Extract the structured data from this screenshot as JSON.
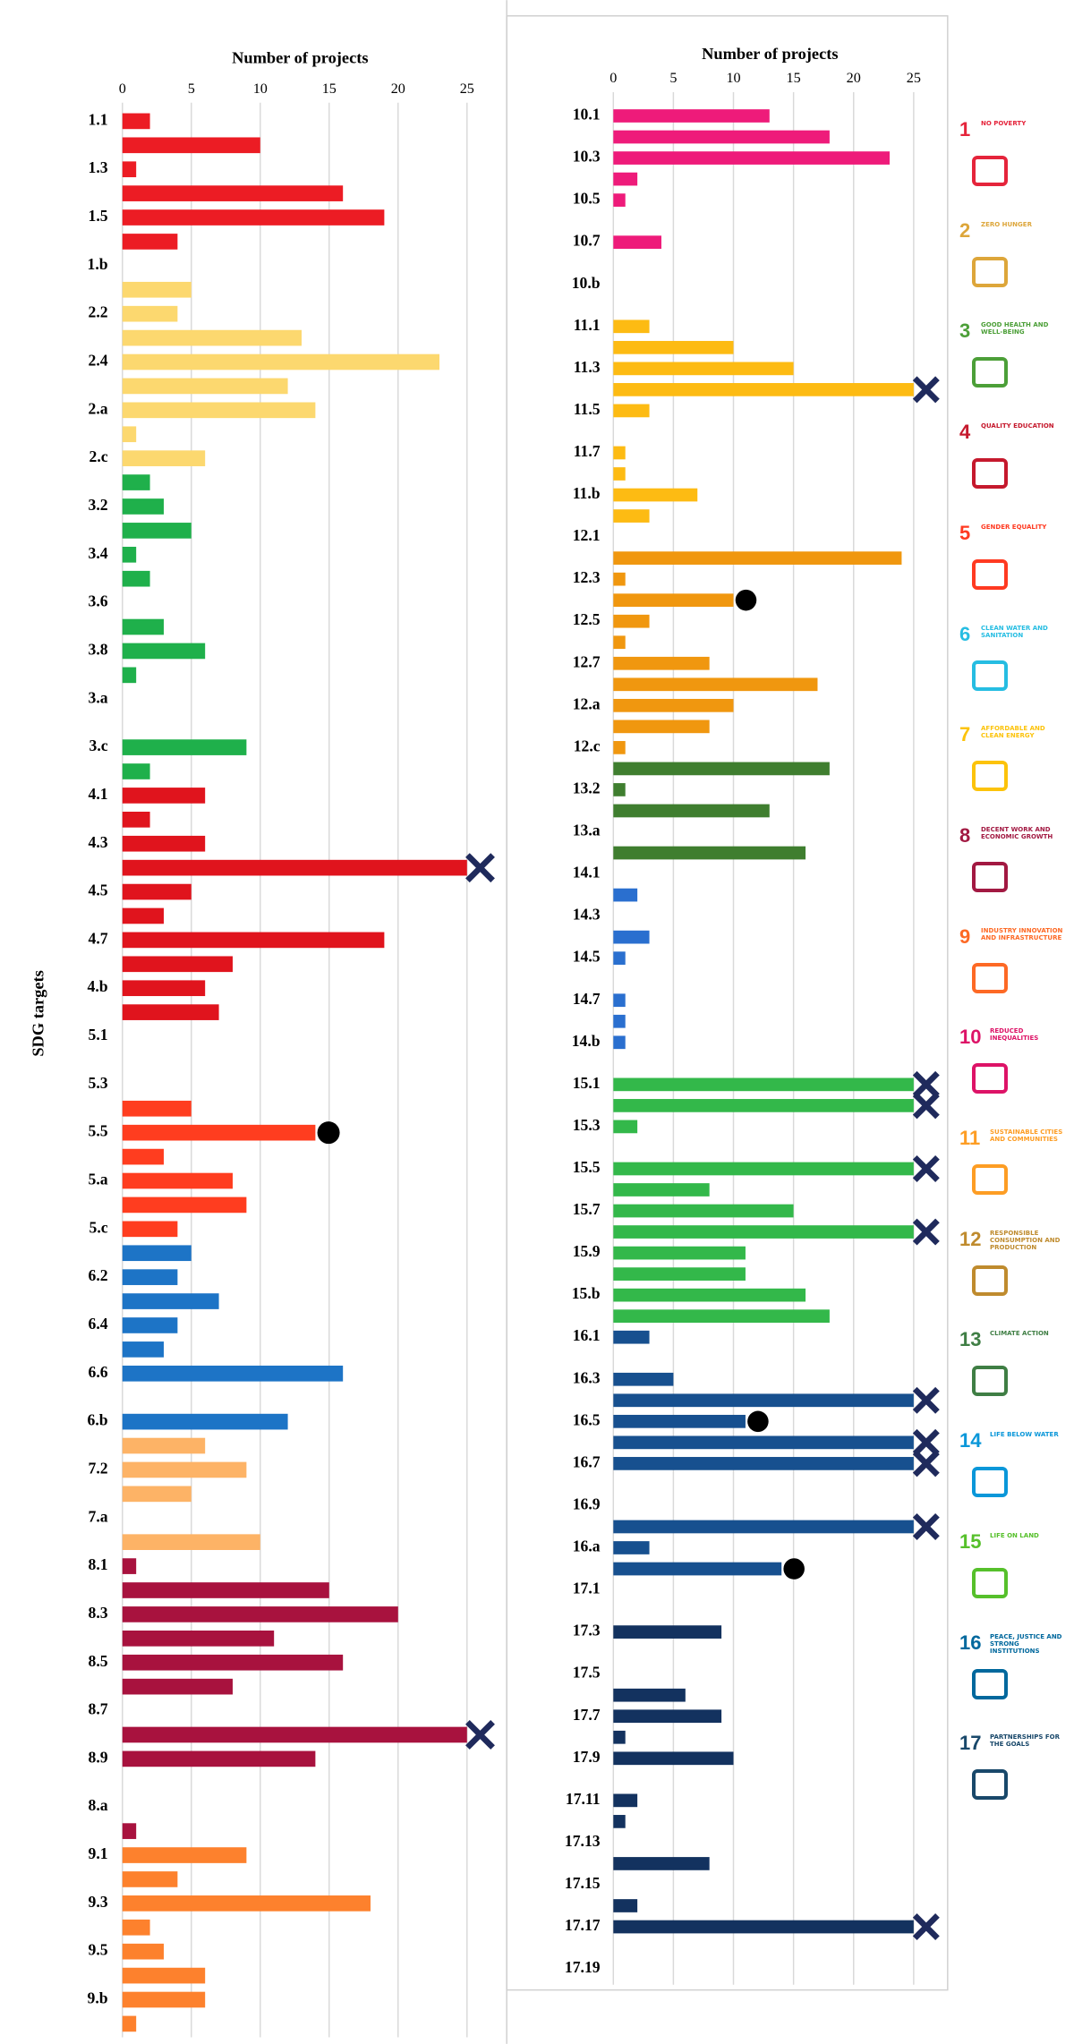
{
  "chart_data": [
    {
      "type": "bar",
      "orientation": "horizontal",
      "xlabel": "Number of projects",
      "ylabel": "SDG targets",
      "xlim": [
        0,
        27.5
      ],
      "xticks": [
        0,
        5,
        10,
        15,
        20,
        25
      ],
      "grid": true,
      "groups": [
        {
          "color": "#ec1c24",
          "categories": [
            "1.1",
            null,
            "1.3",
            null,
            "1.5",
            null,
            "1.b"
          ],
          "values": [
            2,
            10,
            1,
            16,
            19,
            4,
            0
          ],
          "markers": [
            null,
            null,
            null,
            null,
            null,
            null,
            null
          ]
        },
        {
          "color": "#fcd86f",
          "categories": [
            null,
            "2.2",
            null,
            "2.4",
            null,
            "2.a",
            null,
            "2.c"
          ],
          "values": [
            5,
            4,
            13,
            23,
            12,
            14,
            1,
            6
          ],
          "markers": [
            null,
            null,
            null,
            null,
            null,
            null,
            null,
            null
          ]
        },
        {
          "color": "#1fb04b",
          "categories": [
            null,
            "3.2",
            null,
            "3.4",
            null,
            "3.6",
            null,
            "3.8",
            null,
            "3.a",
            null,
            "3.c",
            null
          ],
          "values": [
            2,
            3,
            5,
            1,
            2,
            0,
            3,
            6,
            1,
            0,
            0,
            9,
            2
          ],
          "markers": [
            null,
            null,
            null,
            null,
            null,
            null,
            null,
            null,
            null,
            null,
            null,
            null,
            null
          ]
        },
        {
          "color": "#e0141d",
          "categories": [
            "4.1",
            null,
            "4.3",
            null,
            "4.5",
            null,
            "4.7",
            null,
            "4.b",
            null
          ],
          "values": [
            6,
            2,
            6,
            25,
            5,
            3,
            19,
            8,
            6,
            7
          ],
          "markers": [
            null,
            null,
            null,
            "cross",
            null,
            null,
            null,
            null,
            null,
            null
          ]
        },
        {
          "color": "#ff3d1f",
          "categories": [
            "5.1",
            null,
            "5.3",
            null,
            "5.5",
            null,
            "5.a",
            null,
            "5.c"
          ],
          "values": [
            0,
            0,
            0,
            5,
            14,
            3,
            8,
            9,
            4
          ],
          "markers": [
            null,
            null,
            null,
            null,
            "circle",
            null,
            null,
            null,
            null
          ]
        },
        {
          "color": "#1d74c6",
          "categories": [
            null,
            "6.2",
            null,
            "6.4",
            null,
            "6.6",
            null,
            "6.b"
          ],
          "values": [
            5,
            4,
            7,
            4,
            3,
            16,
            0,
            12
          ],
          "markers": [
            null,
            null,
            null,
            null,
            null,
            null,
            null,
            null
          ]
        },
        {
          "color": "#fdb366",
          "categories": [
            null,
            "7.2",
            null,
            "7.a",
            null
          ],
          "values": [
            6,
            9,
            5,
            0,
            10
          ],
          "markers": [
            null,
            null,
            null,
            null,
            null
          ]
        },
        {
          "color": "#a8123e",
          "categories": [
            "8.1",
            null,
            "8.3",
            null,
            "8.5",
            null,
            "8.7",
            null,
            "8.9",
            null,
            "8.a",
            null
          ],
          "values": [
            1,
            15,
            20,
            11,
            16,
            8,
            0,
            25,
            14,
            0,
            0,
            1
          ],
          "markers": [
            null,
            null,
            null,
            null,
            null,
            null,
            null,
            "cross",
            null,
            null,
            null,
            null
          ]
        },
        {
          "color": "#fd812d",
          "categories": [
            "9.1",
            null,
            "9.3",
            null,
            "9.5",
            null,
            "9.b",
            null
          ],
          "values": [
            9,
            4,
            18,
            2,
            3,
            6,
            6,
            1
          ],
          "markers": [
            null,
            null,
            null,
            null,
            null,
            null,
            null,
            null
          ]
        }
      ]
    },
    {
      "type": "bar",
      "orientation": "horizontal",
      "xlabel": "Number of projects",
      "xlim": [
        0,
        27.5
      ],
      "xticks": [
        0,
        5,
        10,
        15,
        20,
        25
      ],
      "grid": true,
      "groups": [
        {
          "color": "#ee1b7a",
          "categories": [
            "10.1",
            null,
            "10.3",
            null,
            "10.5",
            null,
            "10.7",
            null,
            "10.b",
            null
          ],
          "values": [
            13,
            18,
            23,
            2,
            1,
            0,
            4,
            0,
            0,
            0
          ],
          "markers": [
            null,
            null,
            null,
            null,
            null,
            null,
            null,
            null,
            null,
            null
          ]
        },
        {
          "color": "#fdbb13",
          "categories": [
            "11.1",
            null,
            "11.3",
            null,
            "11.5",
            null,
            "11.7",
            null,
            "11.b",
            null
          ],
          "values": [
            3,
            10,
            15,
            25,
            3,
            0,
            1,
            1,
            7,
            3
          ],
          "markers": [
            null,
            null,
            null,
            "cross",
            null,
            null,
            null,
            null,
            null,
            null
          ]
        },
        {
          "color": "#f0970f",
          "categories": [
            "12.1",
            null,
            "12.3",
            null,
            "12.5",
            null,
            "12.7",
            null,
            "12.a",
            null,
            "12.c"
          ],
          "values": [
            0,
            24,
            1,
            10,
            3,
            1,
            8,
            17,
            10,
            8,
            1
          ],
          "markers": [
            null,
            null,
            null,
            "circle",
            null,
            null,
            null,
            null,
            null,
            null,
            null
          ]
        },
        {
          "color": "#3f7e2f",
          "categories": [
            null,
            "13.2",
            null,
            "13.a",
            null
          ],
          "values": [
            18,
            1,
            13,
            0,
            16
          ],
          "markers": [
            null,
            null,
            null,
            null,
            null
          ]
        },
        {
          "color": "#2a6fcf",
          "categories": [
            "14.1",
            null,
            "14.3",
            null,
            "14.5",
            null,
            "14.7",
            null,
            "14.b",
            null
          ],
          "values": [
            0,
            2,
            0,
            3,
            1,
            0,
            1,
            1,
            1,
            0
          ],
          "markers": [
            null,
            null,
            null,
            null,
            null,
            null,
            null,
            null,
            null,
            null
          ]
        },
        {
          "color": "#33b84a",
          "categories": [
            "15.1",
            null,
            "15.3",
            null,
            "15.5",
            null,
            "15.7",
            null,
            "15.9",
            null,
            "15.b",
            null
          ],
          "values": [
            25,
            25,
            2,
            0,
            25,
            8,
            15,
            25,
            11,
            11,
            16,
            18
          ],
          "markers": [
            "cross",
            "cross",
            null,
            null,
            "cross",
            null,
            null,
            "cross",
            null,
            null,
            null,
            null
          ]
        },
        {
          "color": "#17508f",
          "categories": [
            "16.1",
            null,
            "16.3",
            null,
            "16.5",
            null,
            "16.7",
            null,
            "16.9",
            null,
            "16.a",
            null
          ],
          "values": [
            3,
            0,
            5,
            25,
            11,
            25,
            25,
            0,
            0,
            25,
            3,
            14
          ],
          "markers": [
            null,
            null,
            null,
            "cross",
            "circle",
            "cross",
            "cross",
            null,
            null,
            "cross",
            null,
            "circle"
          ]
        },
        {
          "color": "#13325f",
          "categories": [
            "17.1",
            null,
            "17.3",
            null,
            "17.5",
            null,
            "17.7",
            null,
            "17.9",
            null,
            "17.11",
            null,
            "17.13",
            null,
            "17.15",
            null,
            "17.17",
            null,
            "17.19"
          ],
          "values": [
            0,
            0,
            9,
            0,
            0,
            6,
            9,
            1,
            10,
            0,
            2,
            1,
            0,
            8,
            0,
            2,
            25,
            0,
            0
          ],
          "markers": [
            null,
            null,
            null,
            null,
            null,
            null,
            null,
            null,
            null,
            null,
            null,
            null,
            null,
            null,
            null,
            null,
            "cross",
            null,
            null
          ]
        }
      ]
    }
  ],
  "legend": [
    {
      "number": 1,
      "label": "No poverty",
      "color": "#e5243b"
    },
    {
      "number": 2,
      "label": "Zero hunger",
      "color": "#dda63a"
    },
    {
      "number": 3,
      "label": "Good health and well-being",
      "color": "#4c9f38"
    },
    {
      "number": 4,
      "label": "Quality education",
      "color": "#c5192d"
    },
    {
      "number": 5,
      "label": "Gender equality",
      "color": "#ff3a21"
    },
    {
      "number": 6,
      "label": "Clean water and sanitation",
      "color": "#26bde2"
    },
    {
      "number": 7,
      "label": "Affordable and clean energy",
      "color": "#fcc30b"
    },
    {
      "number": 8,
      "label": "Decent work and economic growth",
      "color": "#a21942"
    },
    {
      "number": 9,
      "label": "Industry innovation and infrastructure",
      "color": "#fd6925"
    },
    {
      "number": 10,
      "label": "Reduced inequalities",
      "color": "#dd1367"
    },
    {
      "number": 11,
      "label": "Sustainable cities and communities",
      "color": "#fd9d24"
    },
    {
      "number": 12,
      "label": "Responsible consumption and production",
      "color": "#bf8b2e"
    },
    {
      "number": 13,
      "label": "Climate action",
      "color": "#3f7e44"
    },
    {
      "number": 14,
      "label": "Life below water",
      "color": "#0a97d9"
    },
    {
      "number": 15,
      "label": "Life on land",
      "color": "#56c02b"
    },
    {
      "number": 16,
      "label": "Peace, justice and strong institutions",
      "color": "#00689d"
    },
    {
      "number": 17,
      "label": "Partnerships for the goals",
      "color": "#19486a"
    }
  ]
}
